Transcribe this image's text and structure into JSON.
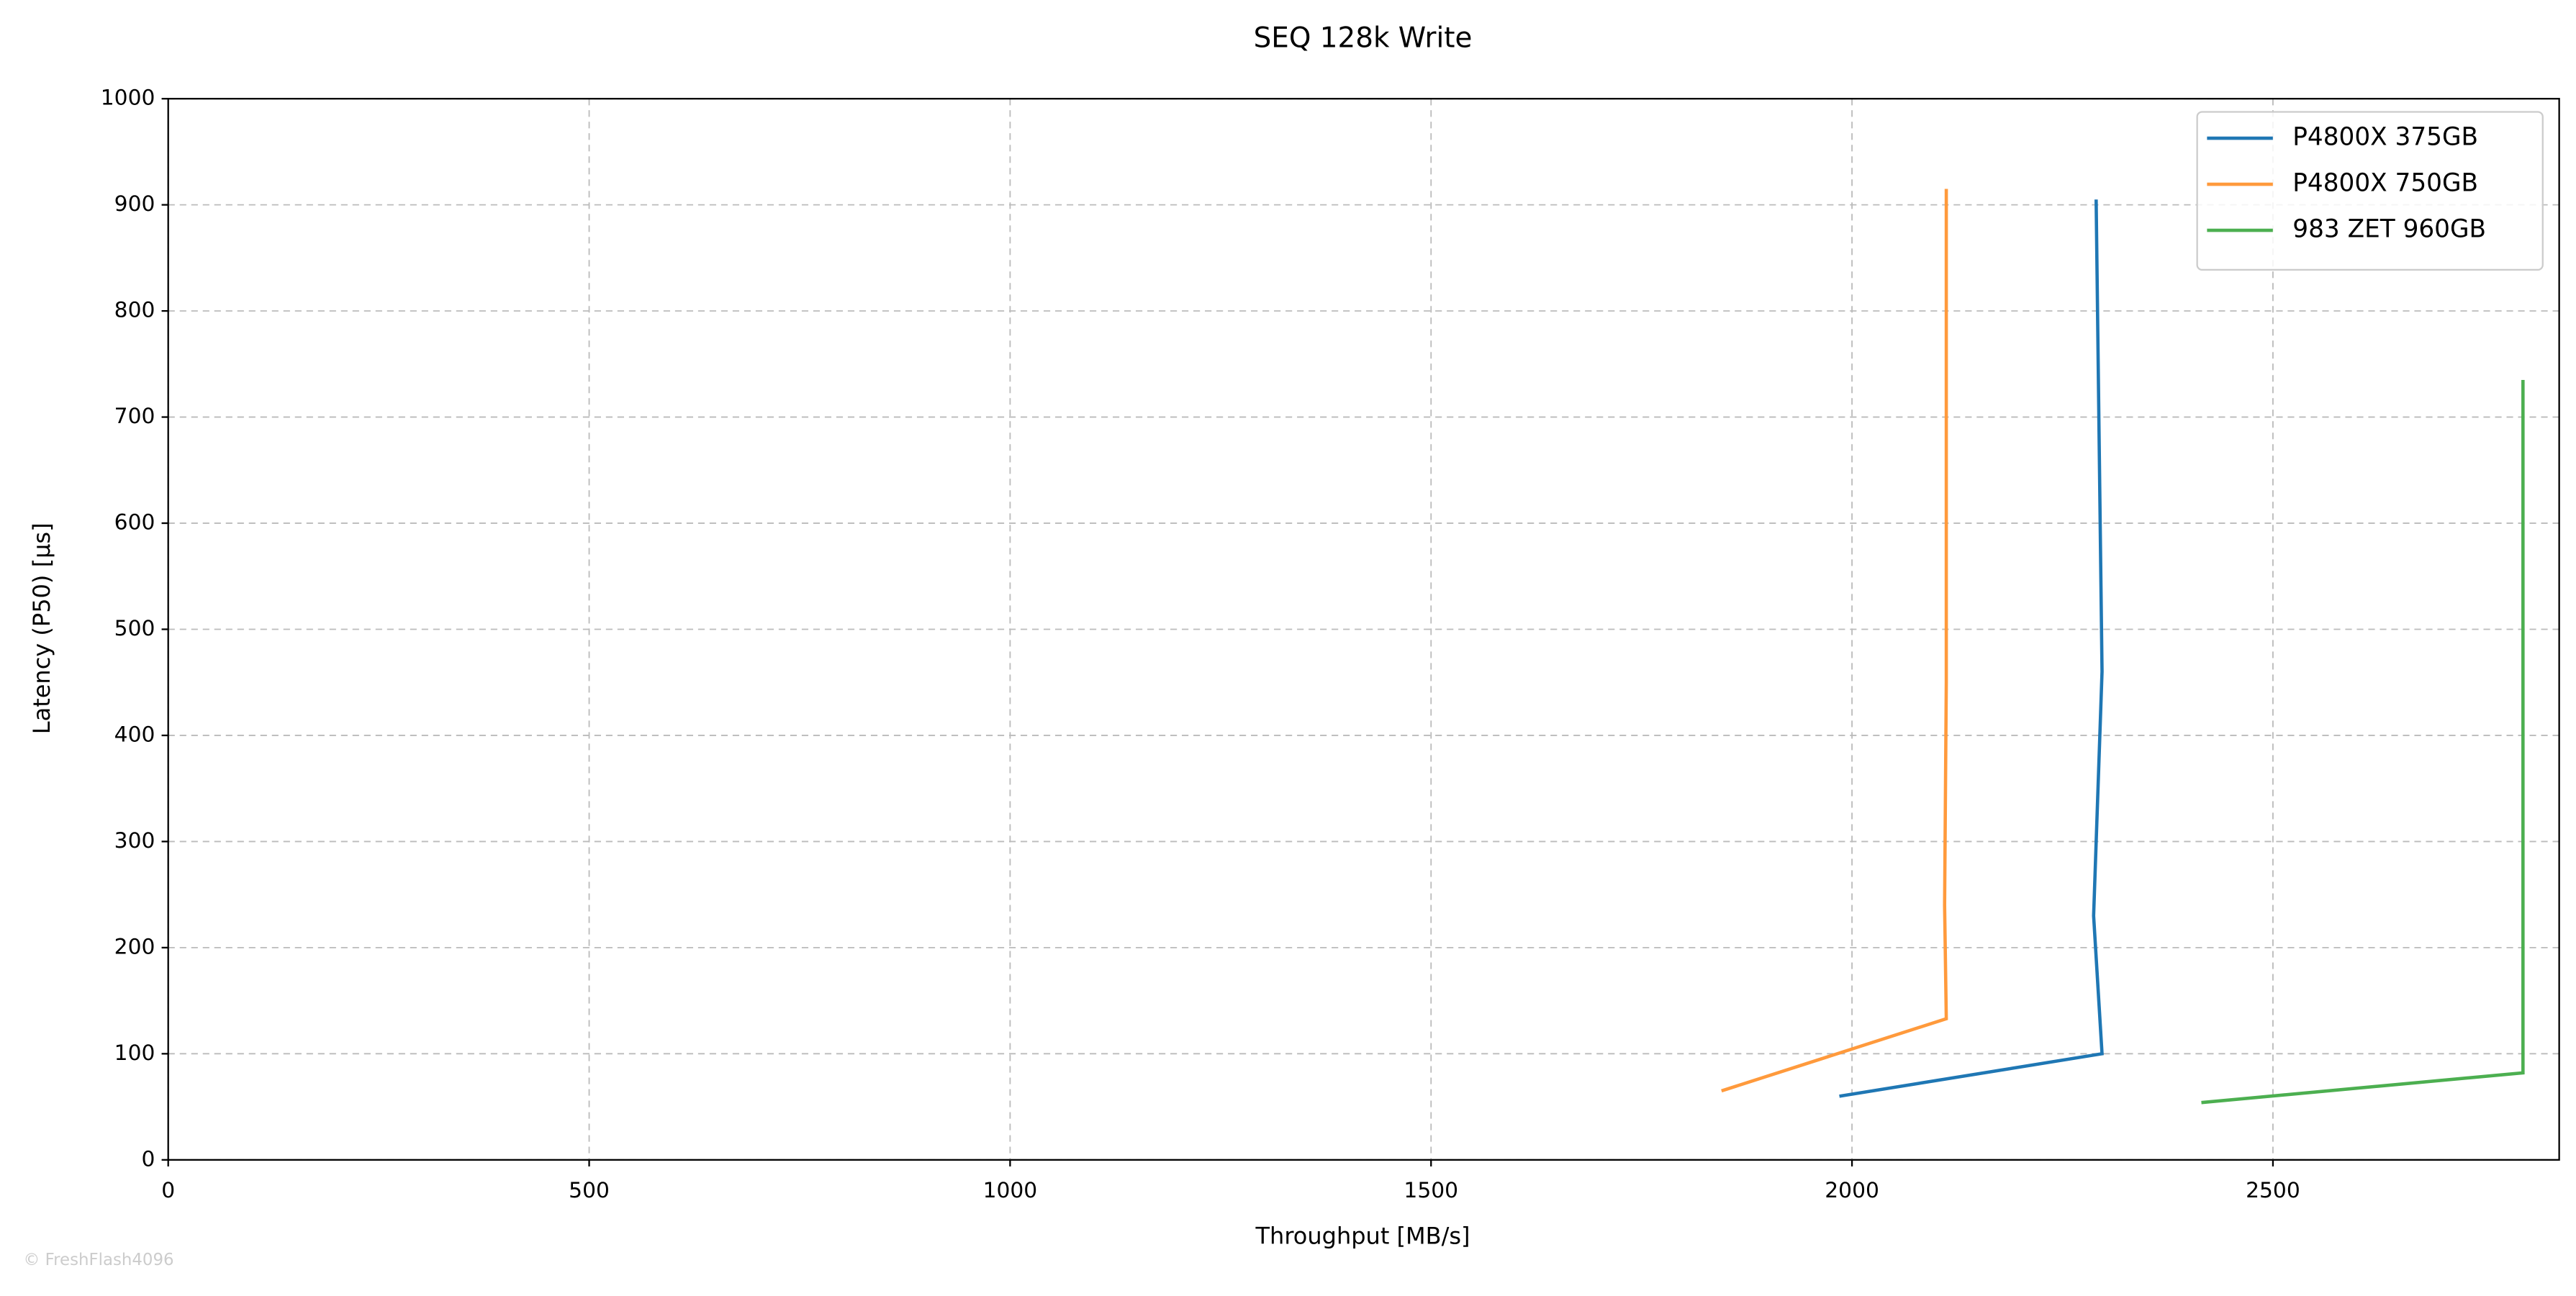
{
  "chart_data": {
    "type": "line",
    "title": "SEQ 128k Write",
    "x_label": "Throughput [MB/s]",
    "y_label": "Latency (P50) [µs]",
    "watermark": "© FreshFlash4096",
    "xlim": [
      0,
      2840
    ],
    "xticks": [
      0,
      500,
      1000,
      1500,
      2000,
      2500
    ],
    "ylim": [
      0,
      1000
    ],
    "yticks": [
      0,
      100,
      200,
      300,
      400,
      500,
      600,
      700,
      800,
      900,
      1000
    ],
    "grid": true,
    "legend": "upper right",
    "series": [
      {
        "name": "P4800X 375GB",
        "color": "#1f77b4",
        "x": [
          1985,
          2297,
          2287,
          2297,
          2290
        ],
        "values": [
          60,
          100,
          230,
          460,
          905
        ]
      },
      {
        "name": "P4800X 750GB",
        "color": "#ff9a3c",
        "x": [
          1845,
          2112,
          2110,
          2112,
          2112
        ],
        "values": [
          65,
          133,
          240,
          450,
          915
        ]
      },
      {
        "name": "983 ZET 960GB",
        "color": "#4caf50",
        "x": [
          2415,
          2797,
          2797,
          2797
        ],
        "values": [
          54,
          82,
          400,
          735
        ]
      }
    ]
  }
}
